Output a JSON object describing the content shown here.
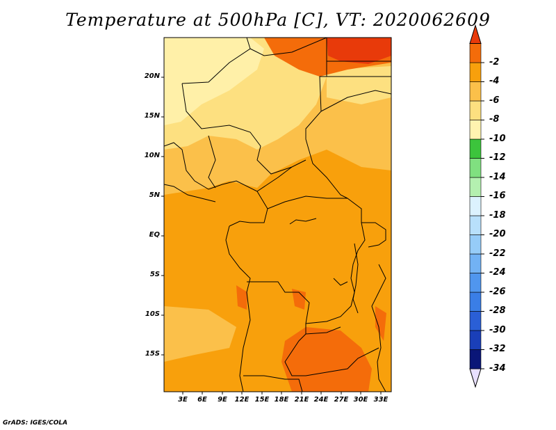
{
  "title": "Temperature at 500hPa [C], VT: 2020062609",
  "credit": "GrADS: IGES/COLA",
  "map": {
    "lat_labels": [
      "20N",
      "15N",
      "10N",
      "5N",
      "EQ",
      "5S",
      "10S",
      "15S"
    ],
    "lon_labels": [
      "3E",
      "6E",
      "9E",
      "12E",
      "15E",
      "18E",
      "21E",
      "24E",
      "27E",
      "30E",
      "33E"
    ]
  },
  "colorbar": {
    "labels": [
      "-2",
      "-4",
      "-6",
      "-8",
      "-10",
      "-12",
      "-14",
      "-16",
      "-18",
      "-20",
      "-22",
      "-24",
      "-26",
      "-28",
      "-30",
      "-32",
      "-34"
    ],
    "colors": [
      "#e8e0ff",
      "#0a1678",
      "#1a3fb8",
      "#2a5fd6",
      "#3a7ee6",
      "#5096ee",
      "#72b2f4",
      "#96ccf8",
      "#b8e0fb",
      "#dcf2fe",
      "#b4f0b0",
      "#80e080",
      "#3cc43c",
      "#fff3b0",
      "#fde080",
      "#fbc04a",
      "#f8a00c",
      "#f46c0a",
      "#e83a0a"
    ]
  },
  "colors": {
    "pale_yellow": "#fff0a8",
    "light_yellow": "#fde080",
    "light_orange": "#fbc04a",
    "orange": "#f8a00c",
    "dark_orange": "#f46c0a",
    "red_orange": "#e83a0a"
  }
}
